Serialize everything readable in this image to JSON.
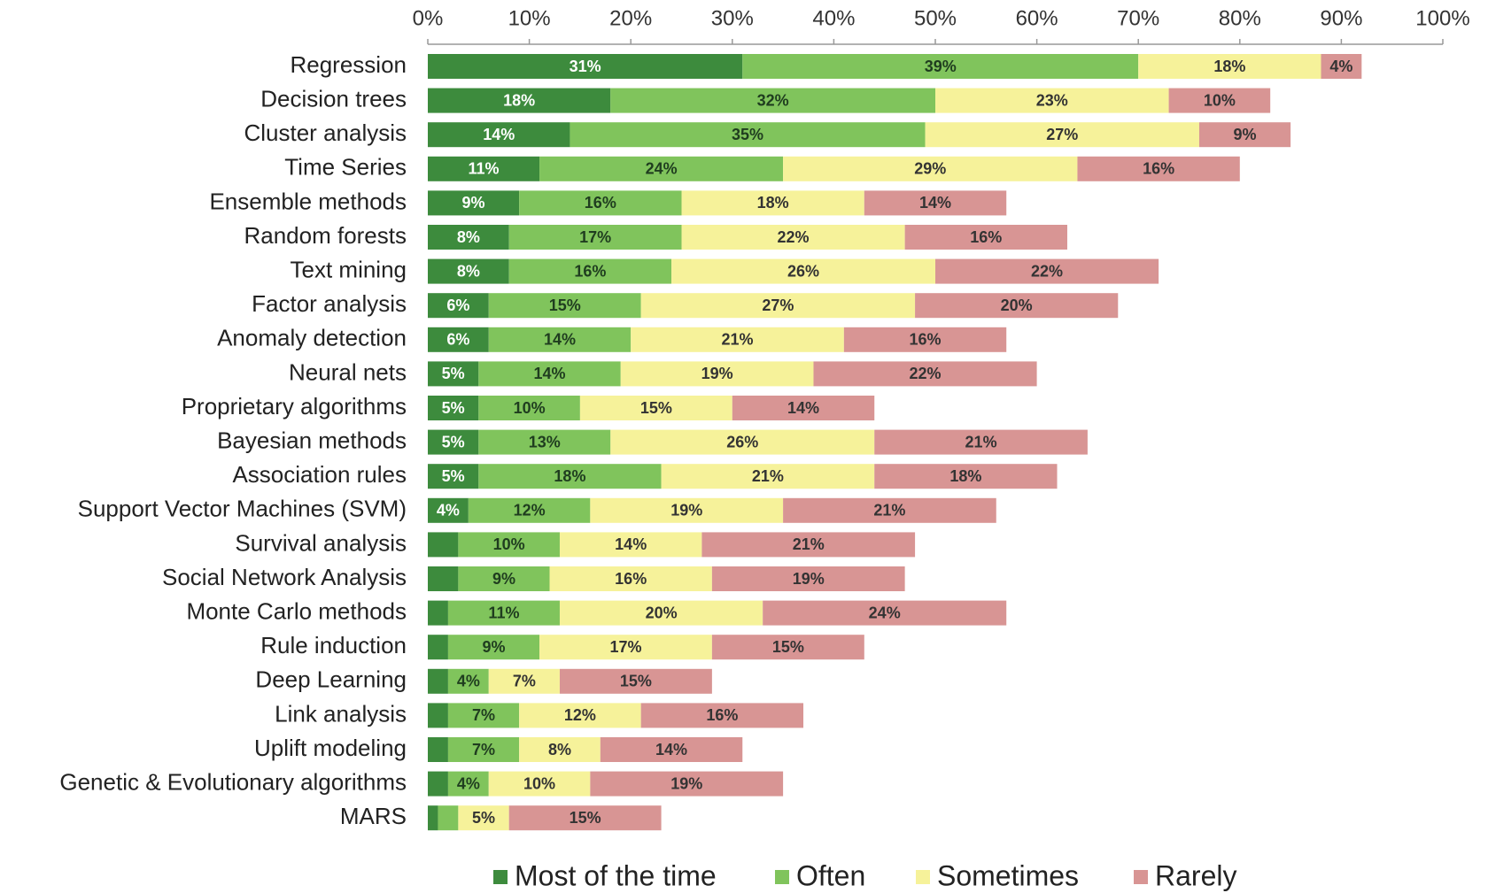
{
  "chart_data": {
    "type": "stacked-bar-horizontal",
    "categories": [
      "Regression",
      "Decision trees",
      "Cluster analysis",
      "Time Series",
      "Ensemble methods",
      "Random forests",
      "Text mining",
      "Factor analysis",
      "Anomaly detection",
      "Neural nets",
      "Proprietary algorithms",
      "Bayesian methods",
      "Association rules",
      "Support Vector Machines (SVM)",
      "Survival analysis",
      "Social Network Analysis",
      "Monte Carlo methods",
      "Rule induction",
      "Deep Learning",
      "Link analysis",
      "Uplift modeling",
      "Genetic & Evolutionary algorithms",
      "MARS"
    ],
    "series": [
      {
        "name": "Most of the time",
        "color": "#3d8b3d",
        "label_color": "#ffffff",
        "values": [
          31,
          18,
          14,
          11,
          9,
          8,
          8,
          6,
          6,
          5,
          5,
          5,
          5,
          4,
          3,
          3,
          2,
          2,
          2,
          2,
          2,
          2,
          1
        ],
        "value_labels": [
          "31%",
          "18%",
          "14%",
          "11%",
          "9%",
          "8%",
          "8%",
          "6%",
          "6%",
          "5%",
          "5%",
          "5%",
          "5%",
          "4%",
          null,
          null,
          null,
          null,
          null,
          null,
          null,
          null,
          null
        ]
      },
      {
        "name": "Often",
        "color": "#80c45c",
        "label_color": "#1f3d1f",
        "values": [
          39,
          32,
          35,
          24,
          16,
          17,
          16,
          15,
          14,
          14,
          10,
          13,
          18,
          12,
          10,
          9,
          11,
          9,
          4,
          7,
          7,
          4,
          2
        ],
        "value_labels": [
          "39%",
          "32%",
          "35%",
          "24%",
          "16%",
          "17%",
          "16%",
          "15%",
          "14%",
          "14%",
          "10%",
          "13%",
          "18%",
          "12%",
          "10%",
          "9%",
          "11%",
          "9%",
          "4%",
          "7%",
          "7%",
          "4%",
          null
        ]
      },
      {
        "name": "Sometimes",
        "color": "#f6f29a",
        "label_color": "#333333",
        "values": [
          18,
          23,
          27,
          29,
          18,
          22,
          26,
          27,
          21,
          19,
          15,
          26,
          21,
          19,
          14,
          16,
          20,
          17,
          7,
          12,
          8,
          10,
          5
        ],
        "value_labels": [
          "18%",
          "23%",
          "27%",
          "29%",
          "18%",
          "22%",
          "26%",
          "27%",
          "21%",
          "19%",
          "15%",
          "26%",
          "21%",
          "19%",
          "14%",
          "16%",
          "20%",
          "17%",
          "7%",
          "12%",
          "8%",
          "10%",
          "5%"
        ]
      },
      {
        "name": "Rarely",
        "color": "#d89594",
        "label_color": "#333333",
        "values": [
          4,
          10,
          9,
          16,
          14,
          16,
          22,
          20,
          16,
          22,
          14,
          21,
          18,
          21,
          21,
          19,
          24,
          15,
          15,
          16,
          14,
          19,
          15
        ],
        "value_labels": [
          "4%",
          "10%",
          "9%",
          "16%",
          "14%",
          "16%",
          "22%",
          "20%",
          "16%",
          "22%",
          "14%",
          "21%",
          "18%",
          "21%",
          "21%",
          "19%",
          "24%",
          "15%",
          "15%",
          "16%",
          "14%",
          "19%",
          "15%"
        ]
      }
    ],
    "xlim": [
      0,
      100
    ],
    "xticks": [
      {
        "value": 0,
        "label": "0%"
      },
      {
        "value": 10,
        "label": "10%"
      },
      {
        "value": 20,
        "label": "20%"
      },
      {
        "value": 30,
        "label": "30%"
      },
      {
        "value": 40,
        "label": "40%"
      },
      {
        "value": 50,
        "label": "50%"
      },
      {
        "value": 60,
        "label": "60%"
      },
      {
        "value": 70,
        "label": "70%"
      },
      {
        "value": 80,
        "label": "80%"
      },
      {
        "value": 90,
        "label": "90%"
      },
      {
        "value": 100,
        "label": "100%"
      }
    ],
    "legend": "bottom"
  }
}
